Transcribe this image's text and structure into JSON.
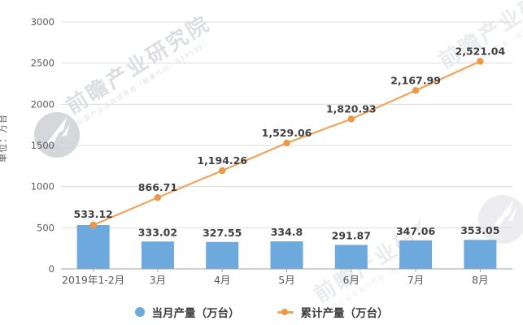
{
  "watermark": {
    "text": "前瞻产业研究院",
    "subtext": "中国产业咨询领导者（股票代码：839599）"
  },
  "legend": [
    {
      "label": "当月产量（万台）",
      "series_type": "bar",
      "color": "#6DA9DC"
    },
    {
      "label": "累计产量（万台）",
      "series_type": "line",
      "color": "#F2A45C"
    }
  ],
  "colors": {
    "bar": "#6DA9DC",
    "line": "#F2A45C",
    "line_marker": "#ED9748",
    "gridline": "#DCDCDC",
    "axis_line": "#A6A6A6",
    "tick_text": "#595959",
    "data_label": "#404040",
    "background": "#FFFFFF"
  },
  "chart_data": {
    "type": "bar+line",
    "title": "",
    "ylabel": "单位：万台",
    "xlabel": "",
    "ylim": [
      0,
      3000
    ],
    "y_ticks": [
      0,
      500,
      1000,
      1500,
      2000,
      2500,
      3000
    ],
    "grid": true,
    "legend_position": "bottom",
    "categories": [
      "2019年1-2月",
      "3月",
      "4月",
      "5月",
      "6月",
      "7月",
      "8月"
    ],
    "series": [
      {
        "name": "当月产量（万台）",
        "type": "bar",
        "color": "#6DA9DC",
        "values": [
          533.12,
          333.02,
          327.55,
          334.8,
          291.87,
          347.06,
          353.05
        ],
        "labels": [
          "533.12",
          "333.02",
          "327.55",
          "334.8",
          "291.87",
          "347.06",
          "353.05"
        ]
      },
      {
        "name": "累计产量（万台）",
        "type": "line",
        "color": "#F2A45C",
        "marker_color": "#ED9748",
        "values": [
          533.12,
          866.71,
          1194.26,
          1529.06,
          1820.93,
          2167.99,
          2521.04
        ],
        "labels": [
          "",
          "866.71",
          "1,194.26",
          "1,529.06",
          "1,820.93",
          "2,167.99",
          "2,521.04"
        ]
      }
    ]
  }
}
